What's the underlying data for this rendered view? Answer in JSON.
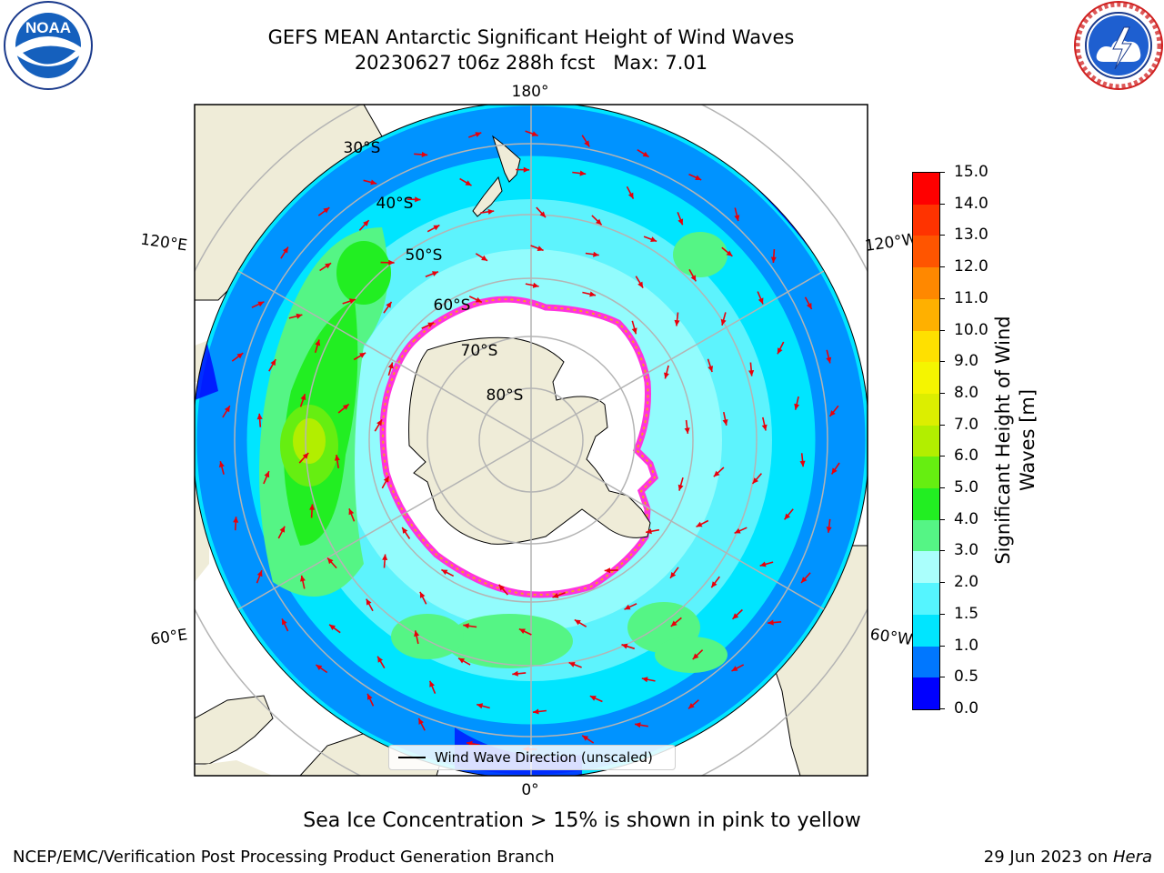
{
  "title": {
    "line1": "GEFS MEAN Antarctic Significant Height of Wind Waves",
    "line2": "20230627 t06z 288h fcst   Max: 7.01"
  },
  "logos": {
    "noaa": {
      "icon": "noaa-logo",
      "text": "NOAA"
    },
    "nws": {
      "icon": "nws-logo"
    }
  },
  "map": {
    "projection": "south-polar-stereographic",
    "meridian_labels": {
      "top": "180°",
      "bottom": "0°",
      "upper_left": "120°E",
      "upper_right": "120°W",
      "lower_left": "60°E",
      "lower_right": "60°W"
    },
    "latitude_labels": [
      "30°S",
      "40°S",
      "50°S",
      "60°S",
      "70°S",
      "80°S"
    ],
    "colors": {
      "land": "#efecd8",
      "ice_edge": "#ff33dd",
      "ice_free_white": "#ffffff",
      "graticule": "#b4b4b4",
      "arrow": "#e8000b"
    },
    "legend": "Wind Wave Direction (unscaled)"
  },
  "colorbar": {
    "label": "Significant Height of Wind Waves [m]",
    "ticks": [
      "0.0",
      "0.5",
      "1.0",
      "1.5",
      "2.0",
      "3.0",
      "4.0",
      "5.0",
      "6.0",
      "7.0",
      "8.0",
      "9.0",
      "10.0",
      "11.0",
      "12.0",
      "13.0",
      "14.0",
      "15.0"
    ],
    "colors": [
      "#0000ff",
      "#0077ff",
      "#00e5ff",
      "#55f5ff",
      "#aafffc",
      "#55f585",
      "#22ee22",
      "#66ee11",
      "#b2ee00",
      "#dcee00",
      "#f5f500",
      "#ffe000",
      "#ffb000",
      "#ff8800",
      "#ff5500",
      "#ff3300",
      "#ff0000"
    ]
  },
  "chart_data": {
    "type": "heatmap",
    "variable": "Significant Height of Wind Waves",
    "unit": "m",
    "max": 7.01,
    "range": [
      0.0,
      15.0
    ],
    "levels": [
      0.0,
      0.5,
      1.0,
      1.5,
      2.0,
      3.0,
      4.0,
      5.0,
      6.0,
      7.0,
      8.0,
      9.0,
      10.0,
      11.0,
      12.0,
      13.0,
      14.0,
      15.0
    ]
  },
  "note": "Sea Ice Concentration > 15% is shown in pink to yellow",
  "footer": {
    "left": "NCEP/EMC/Verification Post Processing Product Generation Branch",
    "right_prefix": "29 Jun 2023 on ",
    "right_machine": "Hera"
  }
}
